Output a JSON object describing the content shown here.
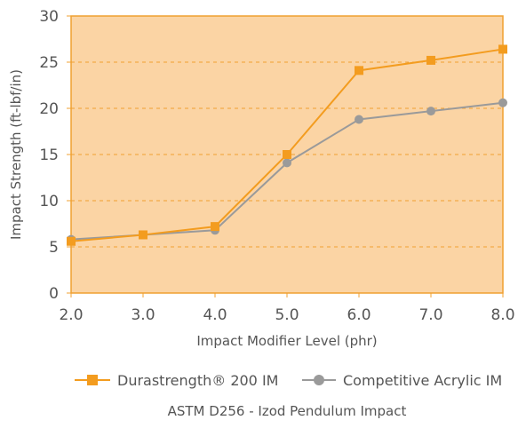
{
  "chart_data": {
    "type": "line",
    "x": [
      2.0,
      3.0,
      4.0,
      5.0,
      6.0,
      7.0,
      8.0
    ],
    "x_tick_labels": [
      "2.0",
      "3.0",
      "4.0",
      "5.0",
      "6.0",
      "7.0",
      "8.0"
    ],
    "series": [
      {
        "name": "Durastrength® 200 IM",
        "color": "#f39c1f",
        "marker": "square",
        "values": [
          5.6,
          6.3,
          7.2,
          15.0,
          24.1,
          25.2,
          26.4
        ]
      },
      {
        "name": "Competitive Acrylic IM",
        "color": "#9a9a9a",
        "marker": "circle",
        "values": [
          5.8,
          6.3,
          6.8,
          14.1,
          18.8,
          19.7,
          20.6
        ]
      }
    ],
    "xlabel": "Impact Modifier Level (phr)",
    "ylabel": "Impact Strength (ft-lbf/in)",
    "ylim": [
      0,
      30
    ],
    "yticks": [
      0,
      5,
      10,
      15,
      20,
      25,
      30
    ],
    "xlim": [
      2.0,
      8.0
    ],
    "caption": "ASTM D256 - Izod Pendulum Impact",
    "grid": "horizontal dashed",
    "legend_position": "bottom",
    "plot_background": "#fbd4a4",
    "grid_color": "#f0a030"
  }
}
